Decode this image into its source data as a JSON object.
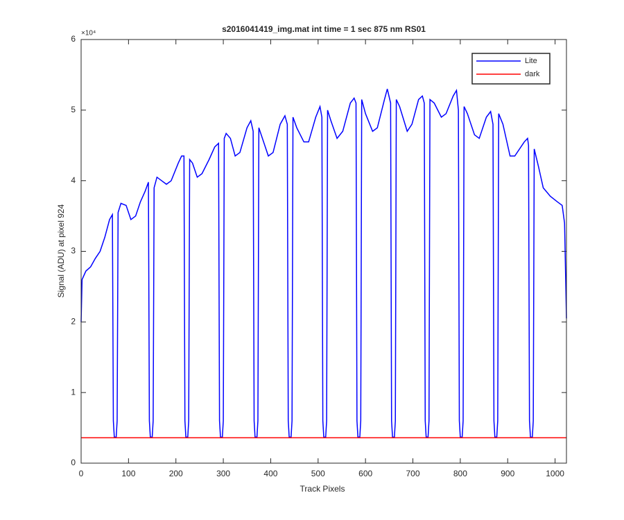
{
  "chart_data": {
    "type": "line",
    "title": "s2016041419_img.mat int time = 1 sec  875 nm RS01",
    "xlabel": "Track Pixels",
    "ylabel": "Signal (ADU) at pixel 924",
    "y_multiplier": "×10⁴",
    "xlim": [
      0,
      1024
    ],
    "ylim": [
      0,
      6
    ],
    "xticks": [
      0,
      100,
      200,
      300,
      400,
      500,
      600,
      700,
      800,
      900,
      1000
    ],
    "yticks": [
      0,
      1,
      2,
      3,
      4,
      5,
      6
    ],
    "grid": false,
    "legend": "top-right",
    "series": [
      {
        "name": "Lite",
        "color": "#0000ff",
        "x": [
          0,
          2,
          10,
          20,
          30,
          40,
          50,
          60,
          66,
          68,
          70,
          74,
          76,
          78,
          84,
          95,
          105,
          115,
          125,
          135,
          142,
          144,
          146,
          150,
          152,
          154,
          160,
          170,
          180,
          190,
          205,
          212,
          217,
          219,
          221,
          225,
          227,
          229,
          235,
          245,
          255,
          270,
          282,
          290,
          292,
          294,
          298,
          300,
          302,
          306,
          315,
          325,
          335,
          350,
          358,
          363,
          365,
          367,
          371,
          373,
          375,
          380,
          395,
          405,
          420,
          430,
          435,
          437,
          439,
          443,
          445,
          447,
          455,
          470,
          480,
          495,
          504,
          508,
          510,
          512,
          516,
          518,
          520,
          527,
          540,
          552,
          568,
          576,
          580,
          582,
          584,
          588,
          590,
          592,
          600,
          615,
          625,
          640,
          646,
          653,
          655,
          657,
          661,
          663,
          665,
          672,
          688,
          698,
          712,
          720,
          724,
          726,
          728,
          732,
          734,
          736,
          745,
          760,
          770,
          785,
          792,
          796,
          798,
          800,
          804,
          806,
          808,
          815,
          830,
          840,
          855,
          864,
          869,
          871,
          873,
          877,
          879,
          881,
          890,
          905,
          915,
          935,
          942,
          944,
          946,
          948,
          952,
          954,
          956,
          965,
          975,
          990,
          1005,
          1015,
          1020,
          1024
        ],
        "values": [
          2.0,
          2.6,
          2.72,
          2.78,
          2.9,
          3.0,
          3.2,
          3.45,
          3.52,
          0.6,
          0.37,
          0.37,
          0.6,
          3.55,
          3.68,
          3.65,
          3.45,
          3.5,
          3.7,
          3.85,
          3.98,
          0.6,
          0.37,
          0.37,
          0.6,
          3.9,
          4.05,
          4.0,
          3.95,
          4.0,
          4.25,
          4.35,
          4.35,
          0.6,
          0.37,
          0.37,
          0.6,
          4.3,
          4.25,
          4.05,
          4.1,
          4.3,
          4.48,
          4.53,
          0.6,
          0.37,
          0.37,
          0.6,
          4.6,
          4.67,
          4.6,
          4.35,
          4.4,
          4.75,
          4.85,
          4.7,
          0.6,
          0.37,
          0.37,
          0.6,
          4.75,
          4.65,
          4.35,
          4.4,
          4.8,
          4.92,
          4.8,
          0.6,
          0.37,
          0.37,
          0.6,
          4.9,
          4.75,
          4.55,
          4.55,
          4.9,
          5.05,
          4.9,
          0.6,
          0.37,
          0.37,
          0.6,
          5.0,
          4.85,
          4.6,
          4.7,
          5.1,
          5.17,
          5.1,
          0.6,
          0.37,
          0.37,
          0.6,
          5.15,
          4.95,
          4.7,
          4.75,
          5.15,
          5.3,
          5.1,
          0.6,
          0.37,
          0.37,
          0.6,
          5.15,
          5.05,
          4.7,
          4.8,
          5.15,
          5.2,
          5.1,
          0.6,
          0.37,
          0.37,
          0.6,
          5.15,
          5.1,
          4.9,
          4.95,
          5.2,
          5.28,
          5.0,
          0.6,
          0.37,
          0.37,
          0.6,
          5.05,
          4.95,
          4.65,
          4.6,
          4.9,
          4.98,
          4.8,
          0.6,
          0.37,
          0.37,
          0.6,
          4.95,
          4.8,
          4.35,
          4.35,
          4.55,
          4.6,
          4.5,
          0.6,
          0.37,
          0.37,
          0.6,
          4.45,
          4.2,
          3.9,
          3.78,
          3.7,
          3.65,
          3.4,
          2.05
        ]
      },
      {
        "name": "dark",
        "color": "#ff0000",
        "x": [
          0,
          1024
        ],
        "values": [
          0.36,
          0.36
        ]
      }
    ]
  }
}
